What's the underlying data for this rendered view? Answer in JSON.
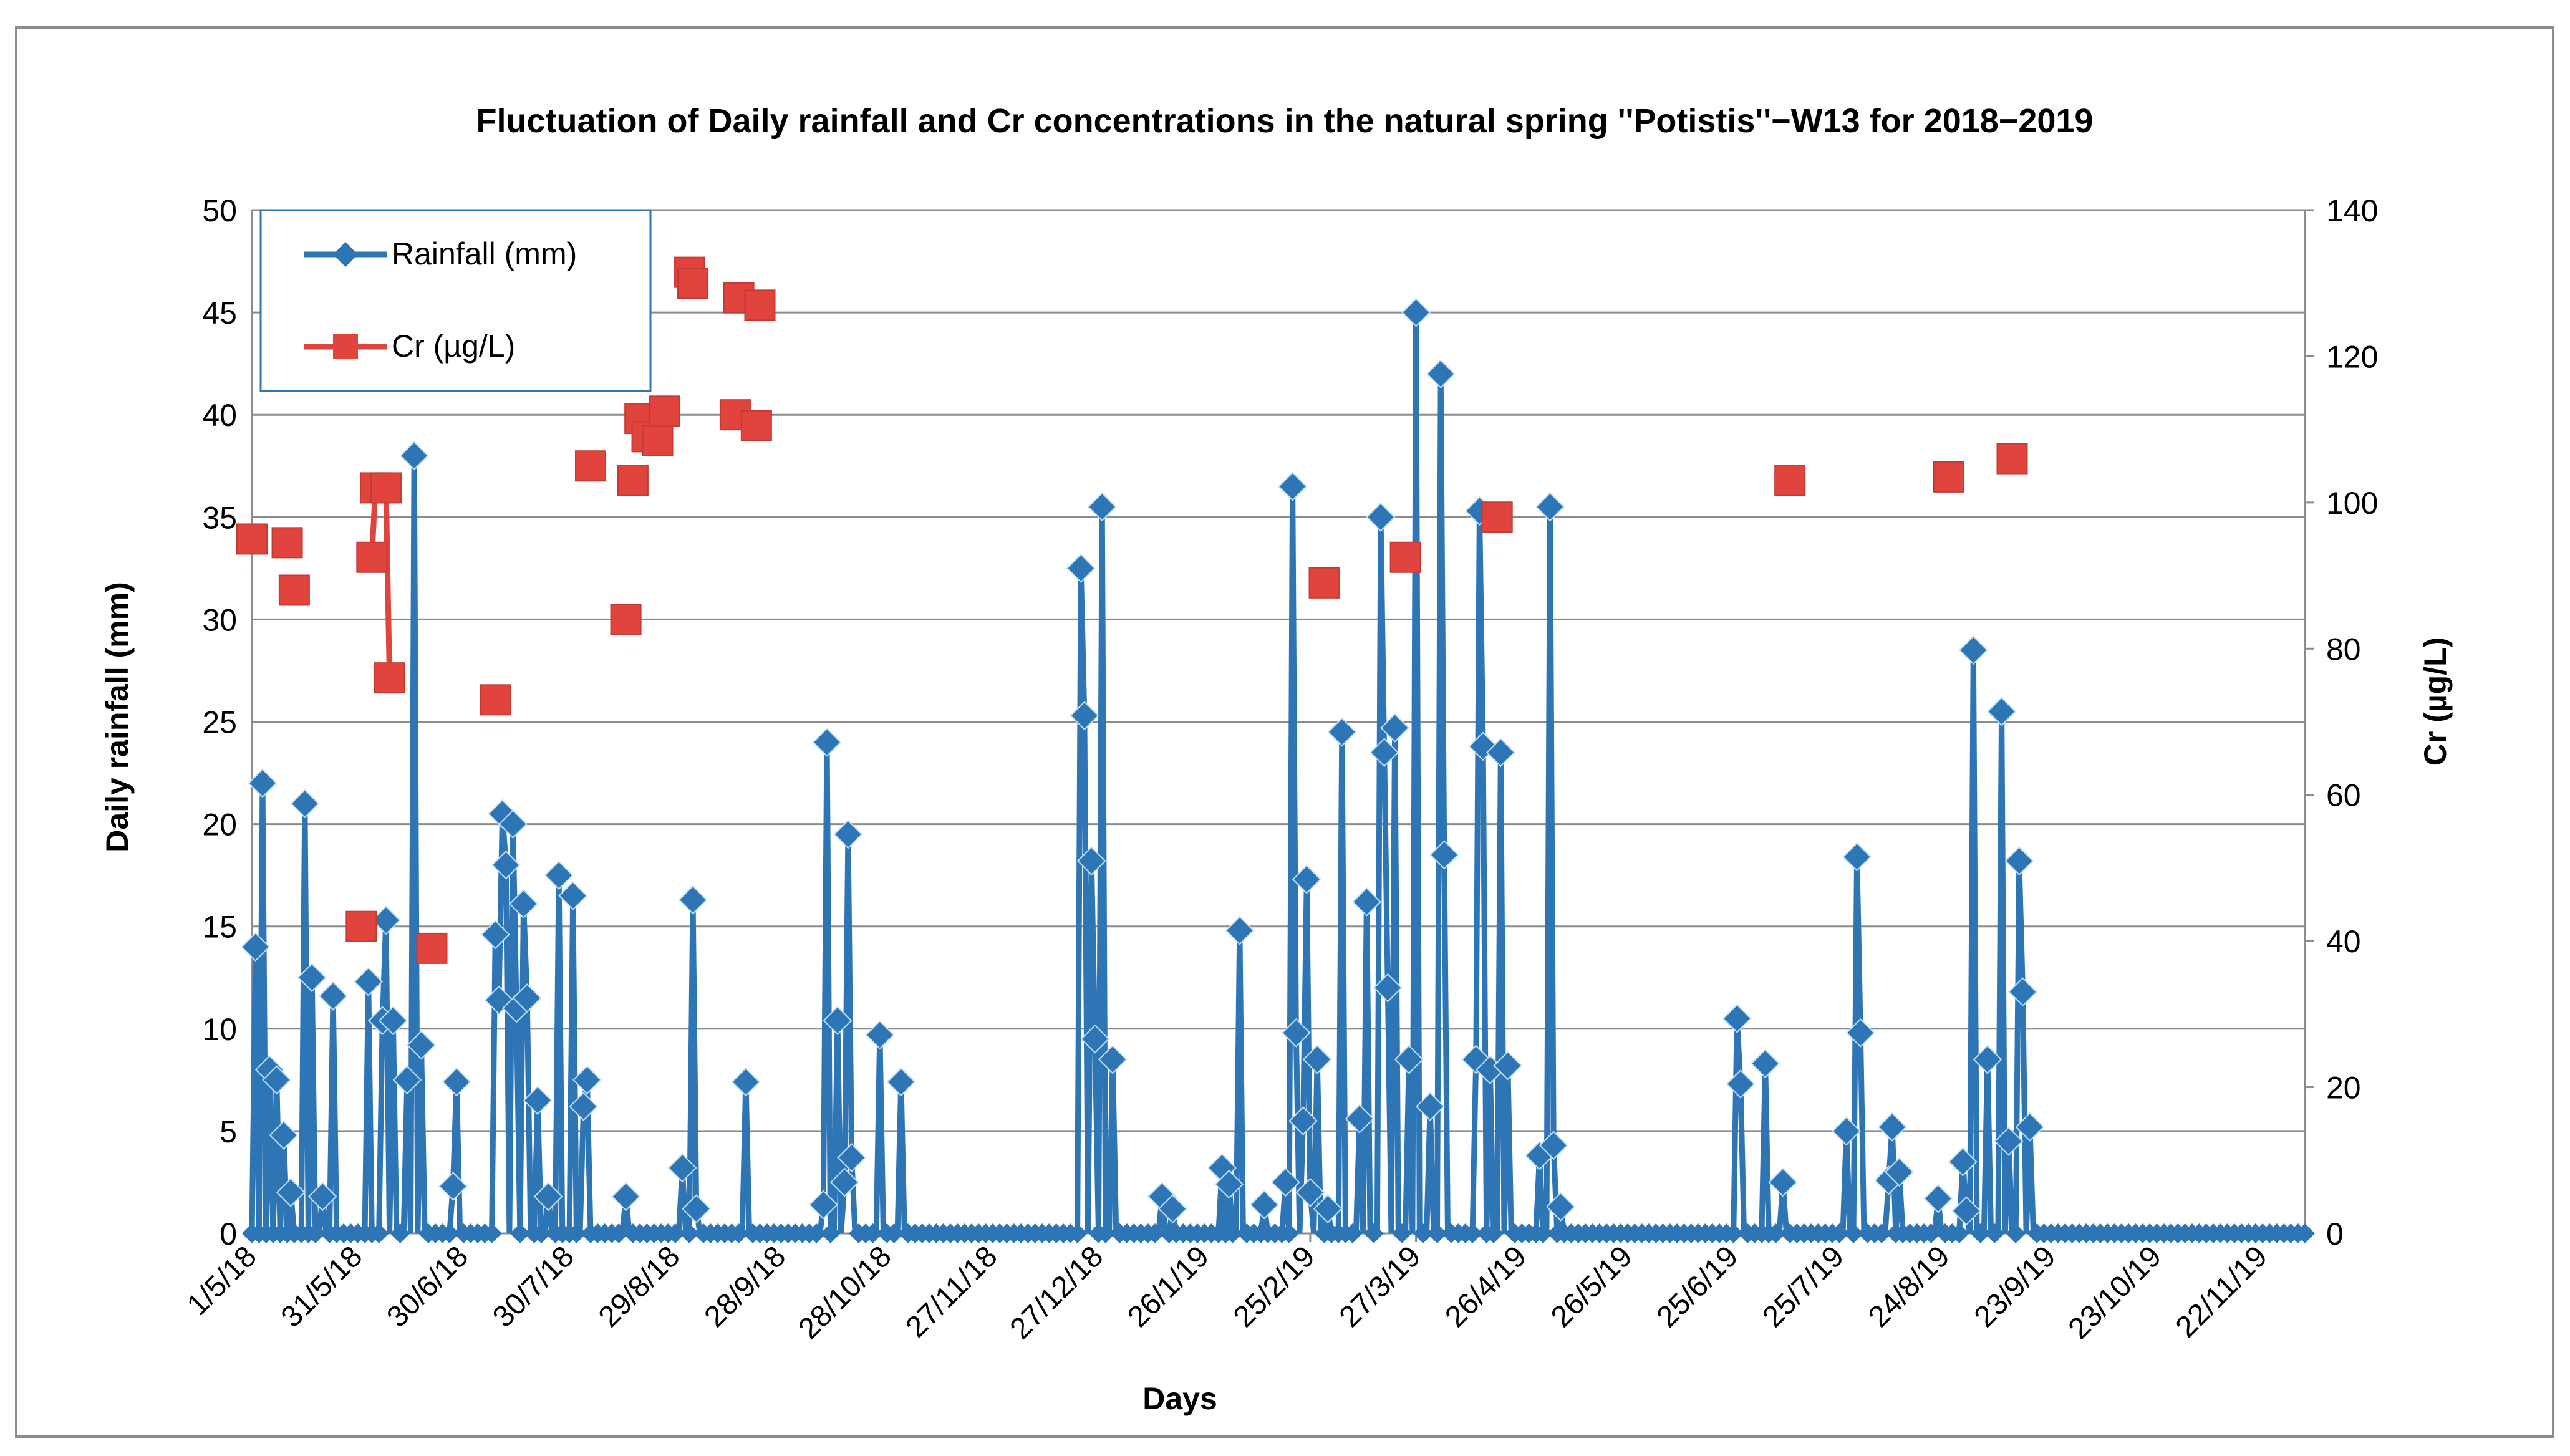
{
  "chart_data": {
    "type": "line",
    "title": "Fluctuation of Daily rainfall and Cr concentrations in the natural spring ''Potistis''−W13  for  2018−2019",
    "xlabel": "Days",
    "ylabel": "Daily rainfall (mm)",
    "y2label": "Cr (µg/L)",
    "ylim": [
      0,
      50
    ],
    "y2lim": [
      0,
      140
    ],
    "yticks": [
      0,
      5,
      10,
      15,
      20,
      25,
      30,
      35,
      40,
      45,
      50
    ],
    "y2ticks": [
      0,
      20,
      40,
      60,
      80,
      100,
      120,
      140
    ],
    "xlim": [
      "2018-05-01",
      "2019-12-04"
    ],
    "xticks": [
      "1/5/18",
      "31/5/18",
      "30/6/18",
      "30/7/18",
      "29/8/18",
      "28/9/18",
      "28/10/18",
      "27/11/18",
      "27/12/18",
      "26/1/19",
      "25/2/19",
      "27/3/19",
      "26/4/19",
      "26/5/19",
      "25/6/19",
      "25/7/19",
      "24/8/19",
      "23/9/19",
      "23/10/19",
      "22/11/19"
    ],
    "grid": true,
    "legend": {
      "position": "top-left",
      "entries": [
        "Rainfall (mm)",
        "Cr (µg/L)"
      ]
    },
    "colors": {
      "rainfall": "#2e75b6",
      "cr": "#e0443c",
      "grid": "#8c8c8c"
    },
    "series": [
      {
        "name": "Rainfall (mm)",
        "axis": "left",
        "points": [
          [
            "2018-05-02",
            14
          ],
          [
            "2018-05-04",
            22
          ],
          [
            "2018-05-06",
            8
          ],
          [
            "2018-05-08",
            7.5
          ],
          [
            "2018-05-10",
            4.8
          ],
          [
            "2018-05-12",
            2
          ],
          [
            "2018-05-16",
            21
          ],
          [
            "2018-05-18",
            12.5
          ],
          [
            "2018-05-21",
            1.8
          ],
          [
            "2018-05-24",
            11.6
          ],
          [
            "2018-06-03",
            12.3
          ],
          [
            "2018-06-07",
            10.4
          ],
          [
            "2018-06-08",
            15.3
          ],
          [
            "2018-06-10",
            10.4
          ],
          [
            "2018-06-14",
            7.5
          ],
          [
            "2018-06-16",
            38
          ],
          [
            "2018-06-18",
            9.2
          ],
          [
            "2018-06-27",
            2.3
          ],
          [
            "2018-06-28",
            7.4
          ],
          [
            "2018-07-09",
            14.6
          ],
          [
            "2018-07-10",
            11.4
          ],
          [
            "2018-07-11",
            20.5
          ],
          [
            "2018-07-12",
            18
          ],
          [
            "2018-07-14",
            20
          ],
          [
            "2018-07-15",
            11
          ],
          [
            "2018-07-17",
            16.1
          ],
          [
            "2018-07-18",
            11.5
          ],
          [
            "2018-07-21",
            6.5
          ],
          [
            "2018-07-24",
            1.8
          ],
          [
            "2018-07-27",
            17.5
          ],
          [
            "2018-07-31",
            16.5
          ],
          [
            "2018-08-03",
            6.2
          ],
          [
            "2018-08-04",
            7.5
          ],
          [
            "2018-08-15",
            1.8
          ],
          [
            "2018-08-31",
            3.2
          ],
          [
            "2018-09-03",
            16.3
          ],
          [
            "2018-09-04",
            1.2
          ],
          [
            "2018-09-18",
            7.4
          ],
          [
            "2018-10-10",
            1.4
          ],
          [
            "2018-10-11",
            24
          ],
          [
            "2018-10-14",
            10.4
          ],
          [
            "2018-10-16",
            2.5
          ],
          [
            "2018-10-17",
            19.5
          ],
          [
            "2018-10-18",
            3.7
          ],
          [
            "2018-10-26",
            9.7
          ],
          [
            "2018-11-01",
            7.4
          ],
          [
            "2018-12-22",
            32.5
          ],
          [
            "2018-12-23",
            25.3
          ],
          [
            "2018-12-25",
            18.2
          ],
          [
            "2018-12-26",
            9.5
          ],
          [
            "2018-12-28",
            35.5
          ],
          [
            "2018-12-31",
            8.5
          ],
          [
            "2019-01-14",
            1.8
          ],
          [
            "2019-01-17",
            1.2
          ],
          [
            "2019-01-31",
            3.2
          ],
          [
            "2019-02-02",
            2.4
          ],
          [
            "2019-02-05",
            14.8
          ],
          [
            "2019-02-12",
            1.4
          ],
          [
            "2019-02-18",
            2.5
          ],
          [
            "2019-02-20",
            36.5
          ],
          [
            "2019-02-21",
            9.8
          ],
          [
            "2019-02-23",
            5.5
          ],
          [
            "2019-02-24",
            17.3
          ],
          [
            "2019-02-25",
            2
          ],
          [
            "2019-02-27",
            8.5
          ],
          [
            "2019-03-02",
            1.2
          ],
          [
            "2019-03-06",
            24.5
          ],
          [
            "2019-03-11",
            5.6
          ],
          [
            "2019-03-13",
            16.2
          ],
          [
            "2019-03-17",
            35
          ],
          [
            "2019-03-18",
            23.5
          ],
          [
            "2019-03-19",
            12
          ],
          [
            "2019-03-21",
            24.7
          ],
          [
            "2019-03-25",
            8.5
          ],
          [
            "2019-03-27",
            45
          ],
          [
            "2019-03-31",
            6.2
          ],
          [
            "2019-04-03",
            42
          ],
          [
            "2019-04-04",
            18.5
          ],
          [
            "2019-04-13",
            8.5
          ],
          [
            "2019-04-14",
            35.3
          ],
          [
            "2019-04-15",
            23.8
          ],
          [
            "2019-04-17",
            8
          ],
          [
            "2019-04-20",
            23.5
          ],
          [
            "2019-04-22",
            8.2
          ],
          [
            "2019-05-01",
            3.8
          ],
          [
            "2019-05-04",
            35.5
          ],
          [
            "2019-05-05",
            4.3
          ],
          [
            "2019-05-07",
            1.3
          ],
          [
            "2019-06-26",
            10.5
          ],
          [
            "2019-06-27",
            7.3
          ],
          [
            "2019-07-04",
            8.3
          ],
          [
            "2019-07-09",
            2.5
          ],
          [
            "2019-07-27",
            5
          ],
          [
            "2019-07-30",
            18.4
          ],
          [
            "2019-07-31",
            9.8
          ],
          [
            "2019-08-08",
            2.6
          ],
          [
            "2019-08-09",
            5.2
          ],
          [
            "2019-08-11",
            3
          ],
          [
            "2019-08-22",
            1.7
          ],
          [
            "2019-08-29",
            3.5
          ],
          [
            "2019-08-30",
            1.1
          ],
          [
            "2019-09-01",
            28.5
          ],
          [
            "2019-09-05",
            8.5
          ],
          [
            "2019-09-09",
            25.5
          ],
          [
            "2019-09-11",
            4.5
          ],
          [
            "2019-09-14",
            18.2
          ],
          [
            "2019-09-15",
            11.8
          ],
          [
            "2019-09-17",
            5.2
          ]
        ]
      },
      {
        "name": "Cr (µg/L)",
        "axis": "right",
        "points": [
          [
            "2018-05-01",
            95
          ],
          [
            "2018-05-11",
            94.5
          ],
          [
            "2018-05-13",
            88
          ],
          [
            "2018-06-01",
            42
          ],
          [
            "2018-06-04",
            92.5
          ],
          [
            "2018-06-05",
            102
          ],
          [
            "2018-06-08",
            102
          ],
          [
            "2018-06-09",
            76
          ],
          [
            "2018-06-21",
            39
          ],
          [
            "2018-07-09",
            73
          ],
          [
            "2018-08-05",
            105
          ],
          [
            "2018-08-15",
            84
          ],
          [
            "2018-08-17",
            103
          ],
          [
            "2018-08-19",
            111.5
          ],
          [
            "2018-08-21",
            109
          ],
          [
            "2018-08-24",
            108.5
          ],
          [
            "2018-08-26",
            112.5
          ],
          [
            "2018-09-02",
            131.5
          ],
          [
            "2018-09-03",
            130
          ],
          [
            "2018-09-16",
            128
          ],
          [
            "2018-09-15",
            112
          ],
          [
            "2018-09-21",
            110.5
          ],
          [
            "2018-09-22",
            127
          ],
          [
            "2019-03-01",
            89
          ],
          [
            "2019-03-24",
            92.5
          ],
          [
            "2019-04-19",
            98
          ],
          [
            "2019-07-11",
            103
          ],
          [
            "2019-08-25",
            103.5
          ],
          [
            "2019-09-12",
            106
          ]
        ],
        "line_segments": [
          [
            [
              "2018-06-04",
              92.5
            ],
            [
              "2018-06-05",
              102
            ]
          ],
          [
            [
              "2018-06-05",
              102
            ],
            [
              "2018-06-08",
              102
            ]
          ],
          [
            [
              "2018-06-08",
              102
            ],
            [
              "2018-06-09",
              76
            ]
          ]
        ]
      }
    ]
  }
}
